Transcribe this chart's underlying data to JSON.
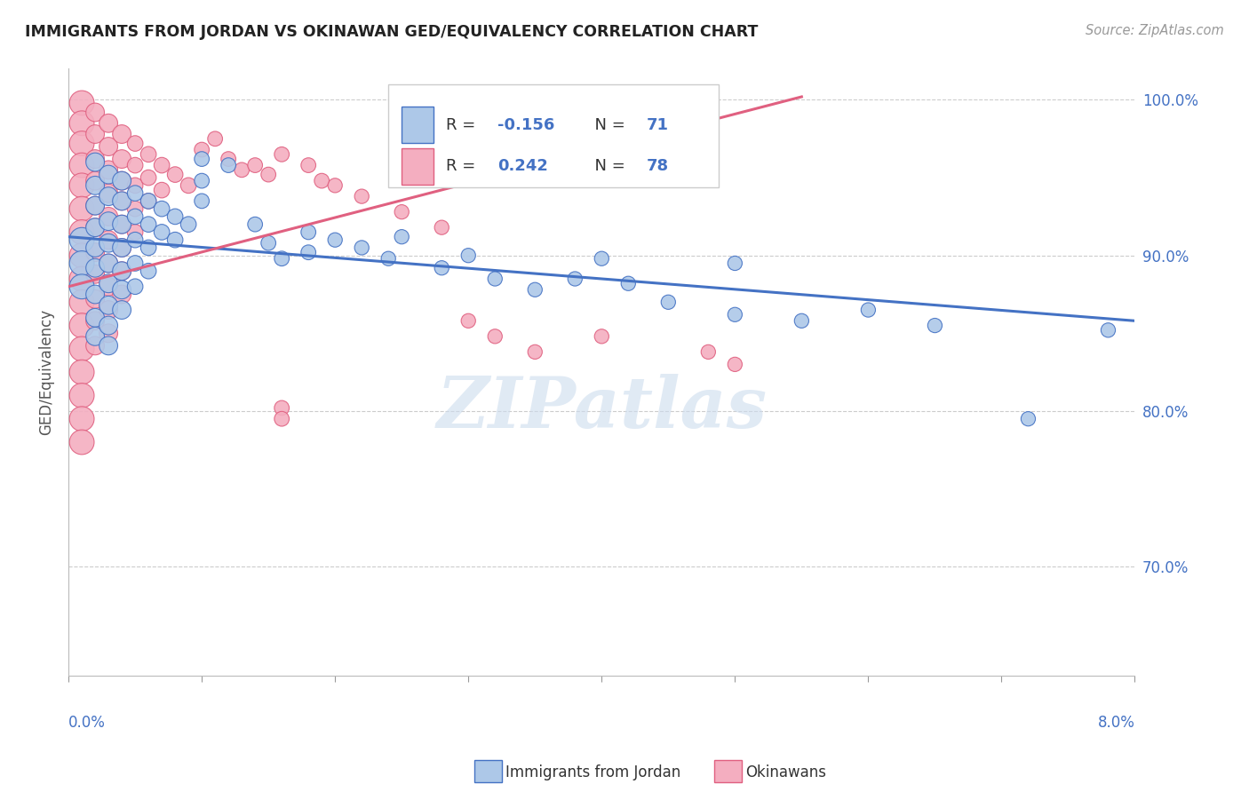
{
  "title": "IMMIGRANTS FROM JORDAN VS OKINAWAN GED/EQUIVALENCY CORRELATION CHART",
  "source": "Source: ZipAtlas.com",
  "ylabel": "GED/Equivalency",
  "ytick_vals": [
    1.0,
    0.9,
    0.8,
    0.7
  ],
  "xlim": [
    0.0,
    0.08
  ],
  "ylim": [
    0.63,
    1.02
  ],
  "blue_color": "#adc8e8",
  "pink_color": "#f4aec0",
  "line_blue": "#4472c4",
  "line_pink": "#e06080",
  "watermark": "ZIPatlas",
  "background": "#ffffff",
  "blue_scatter": [
    [
      0.001,
      0.91
    ],
    [
      0.001,
      0.895
    ],
    [
      0.001,
      0.88
    ],
    [
      0.002,
      0.96
    ],
    [
      0.002,
      0.945
    ],
    [
      0.002,
      0.932
    ],
    [
      0.002,
      0.918
    ],
    [
      0.002,
      0.905
    ],
    [
      0.002,
      0.892
    ],
    [
      0.002,
      0.875
    ],
    [
      0.002,
      0.86
    ],
    [
      0.002,
      0.848
    ],
    [
      0.003,
      0.952
    ],
    [
      0.003,
      0.938
    ],
    [
      0.003,
      0.922
    ],
    [
      0.003,
      0.908
    ],
    [
      0.003,
      0.895
    ],
    [
      0.003,
      0.882
    ],
    [
      0.003,
      0.868
    ],
    [
      0.003,
      0.855
    ],
    [
      0.003,
      0.842
    ],
    [
      0.004,
      0.948
    ],
    [
      0.004,
      0.935
    ],
    [
      0.004,
      0.92
    ],
    [
      0.004,
      0.905
    ],
    [
      0.004,
      0.89
    ],
    [
      0.004,
      0.878
    ],
    [
      0.004,
      0.865
    ],
    [
      0.005,
      0.94
    ],
    [
      0.005,
      0.925
    ],
    [
      0.005,
      0.91
    ],
    [
      0.005,
      0.895
    ],
    [
      0.005,
      0.88
    ],
    [
      0.006,
      0.935
    ],
    [
      0.006,
      0.92
    ],
    [
      0.006,
      0.905
    ],
    [
      0.006,
      0.89
    ],
    [
      0.007,
      0.93
    ],
    [
      0.007,
      0.915
    ],
    [
      0.008,
      0.925
    ],
    [
      0.008,
      0.91
    ],
    [
      0.009,
      0.92
    ],
    [
      0.01,
      0.962
    ],
    [
      0.01,
      0.948
    ],
    [
      0.01,
      0.935
    ],
    [
      0.012,
      0.958
    ],
    [
      0.014,
      0.92
    ],
    [
      0.015,
      0.908
    ],
    [
      0.016,
      0.898
    ],
    [
      0.018,
      0.915
    ],
    [
      0.018,
      0.902
    ],
    [
      0.02,
      0.91
    ],
    [
      0.022,
      0.905
    ],
    [
      0.024,
      0.898
    ],
    [
      0.025,
      0.912
    ],
    [
      0.028,
      0.892
    ],
    [
      0.03,
      0.9
    ],
    [
      0.032,
      0.885
    ],
    [
      0.035,
      0.878
    ],
    [
      0.038,
      0.885
    ],
    [
      0.04,
      0.898
    ],
    [
      0.042,
      0.882
    ],
    [
      0.045,
      0.87
    ],
    [
      0.05,
      0.895
    ],
    [
      0.05,
      0.862
    ],
    [
      0.055,
      0.858
    ],
    [
      0.06,
      0.865
    ],
    [
      0.065,
      0.855
    ],
    [
      0.072,
      0.795
    ],
    [
      0.078,
      0.852
    ]
  ],
  "pink_scatter": [
    [
      0.001,
      0.998
    ],
    [
      0.001,
      0.985
    ],
    [
      0.001,
      0.972
    ],
    [
      0.001,
      0.958
    ],
    [
      0.001,
      0.945
    ],
    [
      0.001,
      0.93
    ],
    [
      0.001,
      0.915
    ],
    [
      0.001,
      0.9
    ],
    [
      0.001,
      0.885
    ],
    [
      0.001,
      0.87
    ],
    [
      0.001,
      0.855
    ],
    [
      0.001,
      0.84
    ],
    [
      0.001,
      0.825
    ],
    [
      0.001,
      0.81
    ],
    [
      0.001,
      0.795
    ],
    [
      0.001,
      0.78
    ],
    [
      0.002,
      0.992
    ],
    [
      0.002,
      0.978
    ],
    [
      0.002,
      0.962
    ],
    [
      0.002,
      0.948
    ],
    [
      0.002,
      0.932
    ],
    [
      0.002,
      0.918
    ],
    [
      0.002,
      0.902
    ],
    [
      0.002,
      0.888
    ],
    [
      0.002,
      0.872
    ],
    [
      0.002,
      0.858
    ],
    [
      0.002,
      0.842
    ],
    [
      0.003,
      0.985
    ],
    [
      0.003,
      0.97
    ],
    [
      0.003,
      0.955
    ],
    [
      0.003,
      0.94
    ],
    [
      0.003,
      0.925
    ],
    [
      0.003,
      0.91
    ],
    [
      0.003,
      0.895
    ],
    [
      0.003,
      0.88
    ],
    [
      0.003,
      0.865
    ],
    [
      0.003,
      0.85
    ],
    [
      0.004,
      0.978
    ],
    [
      0.004,
      0.962
    ],
    [
      0.004,
      0.948
    ],
    [
      0.004,
      0.935
    ],
    [
      0.004,
      0.92
    ],
    [
      0.004,
      0.905
    ],
    [
      0.004,
      0.89
    ],
    [
      0.004,
      0.875
    ],
    [
      0.005,
      0.972
    ],
    [
      0.005,
      0.958
    ],
    [
      0.005,
      0.945
    ],
    [
      0.005,
      0.93
    ],
    [
      0.005,
      0.915
    ],
    [
      0.006,
      0.965
    ],
    [
      0.006,
      0.95
    ],
    [
      0.006,
      0.935
    ],
    [
      0.007,
      0.958
    ],
    [
      0.007,
      0.942
    ],
    [
      0.008,
      0.952
    ],
    [
      0.009,
      0.945
    ],
    [
      0.01,
      0.968
    ],
    [
      0.011,
      0.975
    ],
    [
      0.012,
      0.962
    ],
    [
      0.013,
      0.955
    ],
    [
      0.014,
      0.958
    ],
    [
      0.015,
      0.952
    ],
    [
      0.016,
      0.965
    ],
    [
      0.016,
      0.802
    ],
    [
      0.016,
      0.795
    ],
    [
      0.018,
      0.958
    ],
    [
      0.019,
      0.948
    ],
    [
      0.02,
      0.945
    ],
    [
      0.022,
      0.938
    ],
    [
      0.025,
      0.928
    ],
    [
      0.028,
      0.918
    ],
    [
      0.03,
      0.858
    ],
    [
      0.032,
      0.848
    ],
    [
      0.035,
      0.838
    ],
    [
      0.04,
      0.848
    ],
    [
      0.048,
      0.838
    ],
    [
      0.05,
      0.83
    ]
  ],
  "blue_line_x": [
    0.0,
    0.08
  ],
  "blue_line_y": [
    0.912,
    0.858
  ],
  "pink_line_x": [
    0.0,
    0.055
  ],
  "pink_line_y": [
    0.88,
    1.002
  ]
}
